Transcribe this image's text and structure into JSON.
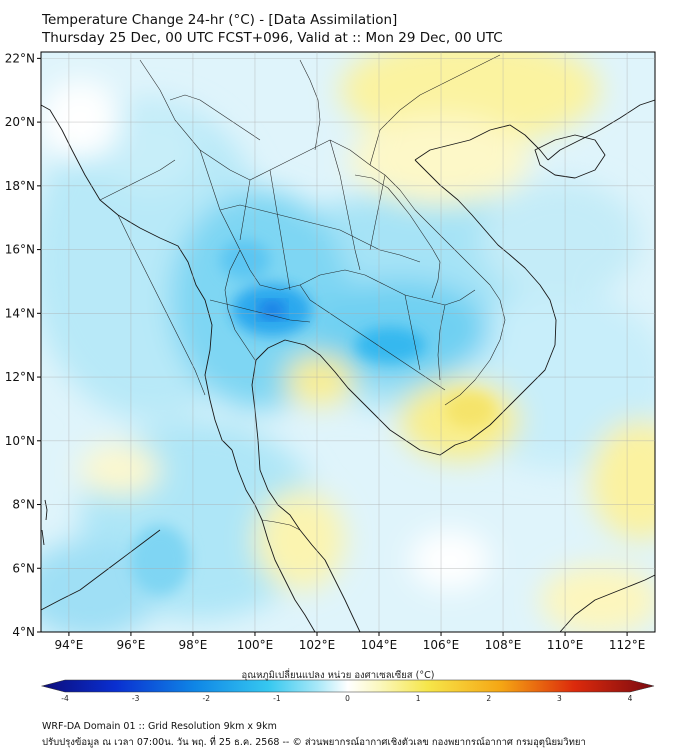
{
  "title": {
    "line1": "Temperature Change 24-hr (°C) - [Data Assimilation]",
    "line2": "Thursday 25 Dec, 00 UTC FCST+096, Valid at :: Mon 29 Dec, 00 UTC"
  },
  "axes": {
    "lat_ticks": [
      "22°N",
      "20°N",
      "18°N",
      "16°N",
      "14°N",
      "12°N",
      "10°N",
      "8°N",
      "6°N",
      "4°N"
    ],
    "lon_ticks": [
      "94°E",
      "96°E",
      "98°E",
      "100°E",
      "102°E",
      "104°E",
      "106°E",
      "108°E",
      "110°E",
      "112°E"
    ],
    "lat_range": [
      4,
      22.2
    ],
    "lon_range": [
      93.1,
      112.9
    ]
  },
  "colorbar": {
    "title": "อุณหภูมิเปลี่ยนแปลง หน่วย องศาเซลเซียส (°C)",
    "ticks": [
      "-4",
      "-3",
      "-2",
      "-1",
      "0",
      "1",
      "2",
      "3",
      "4"
    ],
    "range": [
      -4,
      4
    ],
    "colors": {
      "cold_extreme": "#0c0c7a",
      "cold_strong": "#0a3fe0",
      "cold": "#1ab2ee",
      "cool": "#7fdcf4",
      "neutral": "#ffffff",
      "warm_light": "#fbf8b0",
      "warm": "#f7e450",
      "hot": "#f08a10",
      "hot_strong": "#d81e0a",
      "hot_extreme": "#7a0a10"
    }
  },
  "footer": {
    "line1": "WRF-DA Domain 01 :: Grid Resolution 9km x 9km",
    "line2": "ปรับปรุงข้อมูล ณ เวลา 07:00น. วัน พฤ. ที่ 25 ธ.ค. 2568 -- © ส่วนพยากรณ์อากาศเชิงตัวเลข กองพยากรณ์อากาศ กรมอุตุนิยมวิทยา"
  }
}
